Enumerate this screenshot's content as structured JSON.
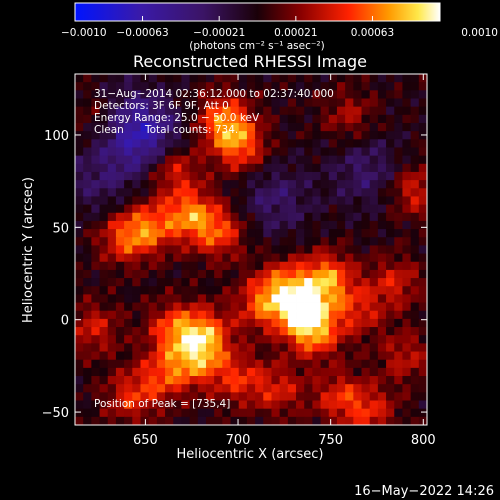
{
  "chart_data": {
    "type": "heatmap",
    "title": "Reconstructed RHESSI Image",
    "xlabel": "Heliocentric X (arcsec)",
    "ylabel": "Heliocentric Y (arcsec)",
    "xlim": [
      612,
      802
    ],
    "ylim": [
      -57,
      133
    ],
    "xticks": [
      650,
      700,
      750,
      800
    ],
    "xtick_labels": [
      "650",
      "700",
      "750",
      "800"
    ],
    "yticks": [
      -50,
      0,
      50,
      100
    ],
    "ytick_labels": [
      "−50",
      "0",
      "50",
      "100"
    ],
    "grid": false,
    "colorbar": {
      "position": "top",
      "range": [
        -0.001,
        0.001
      ],
      "tick_values": [
        -0.001,
        -0.00063,
        -0.00021,
        0.00021,
        0.00063,
        0.001
      ],
      "tick_labels": [
        "−0.0010",
        "−0.00063",
        "−0.00021",
        "0.00021",
        "0.00063",
        "0.0010"
      ],
      "unit_label": "(photons cm⁻² s⁻¹ asec⁻²)",
      "colormap": "blue-purple-red-orange-yellow-white"
    },
    "annotations": [
      "31−Aug−2014 02:36:12.000 to 02:37:40.000",
      "Detectors: 3F 6F 9F, Att 0",
      "Energy Range: 25.0 − 50.0 keV",
      "Clean",
      "Total counts: 734.",
      "Position of Peak = [735,4]"
    ],
    "peak_position": [
      735,
      4
    ],
    "total_counts": 734,
    "energy_range_kev": [
      25.0,
      50.0
    ],
    "grid_shape": [
      43,
      43
    ],
    "sources": [
      {
        "x": 692,
        "y": 108,
        "amplitude": 0.72
      },
      {
        "x": 701,
        "y": 94,
        "amplitude": 0.68
      },
      {
        "x": 665,
        "y": 82,
        "amplitude": 0.58
      },
      {
        "x": 674,
        "y": 57,
        "amplitude": 0.72
      },
      {
        "x": 652,
        "y": 50,
        "amplitude": 0.62
      },
      {
        "x": 638,
        "y": 44,
        "amplitude": 0.55
      },
      {
        "x": 690,
        "y": 47,
        "amplitude": 0.6
      },
      {
        "x": 735,
        "y": 4,
        "amplitude": 1.0
      },
      {
        "x": 748,
        "y": 22,
        "amplitude": 0.8
      },
      {
        "x": 725,
        "y": 18,
        "amplitude": 0.65
      },
      {
        "x": 712,
        "y": 8,
        "amplitude": 0.55
      },
      {
        "x": 742,
        "y": -8,
        "amplitude": 0.6
      },
      {
        "x": 765,
        "y": 5,
        "amplitude": 0.45
      },
      {
        "x": 682,
        "y": -8,
        "amplitude": 0.72
      },
      {
        "x": 665,
        "y": -5,
        "amplitude": 0.6
      },
      {
        "x": 678,
        "y": -22,
        "amplitude": 0.62
      },
      {
        "x": 660,
        "y": -30,
        "amplitude": 0.55
      },
      {
        "x": 700,
        "y": -32,
        "amplitude": 0.5
      },
      {
        "x": 722,
        "y": -38,
        "amplitude": 0.45
      },
      {
        "x": 642,
        "y": -42,
        "amplitude": 0.5
      },
      {
        "x": 755,
        "y": -42,
        "amplitude": 0.5
      },
      {
        "x": 772,
        "y": -50,
        "amplitude": 0.45
      },
      {
        "x": 795,
        "y": 70,
        "amplitude": 0.5
      },
      {
        "x": 785,
        "y": 20,
        "amplitude": 0.45
      },
      {
        "x": 790,
        "y": -20,
        "amplitude": 0.4
      },
      {
        "x": 760,
        "y": 110,
        "amplitude": 0.35
      },
      {
        "x": 622,
        "y": -5,
        "amplitude": 0.45
      },
      {
        "x": 625,
        "y": 110,
        "amplitude": 0.3
      }
    ],
    "negative_sources": [
      {
        "x": 652,
        "y": 97,
        "amplitude": 0.55
      },
      {
        "x": 640,
        "y": 108,
        "amplitude": 0.4
      },
      {
        "x": 720,
        "y": 65,
        "amplitude": 0.35
      },
      {
        "x": 770,
        "y": 80,
        "amplitude": 0.35
      },
      {
        "x": 625,
        "y": 75,
        "amplitude": 0.3
      }
    ]
  },
  "footer_datetime": "16−May−2022 14:26"
}
